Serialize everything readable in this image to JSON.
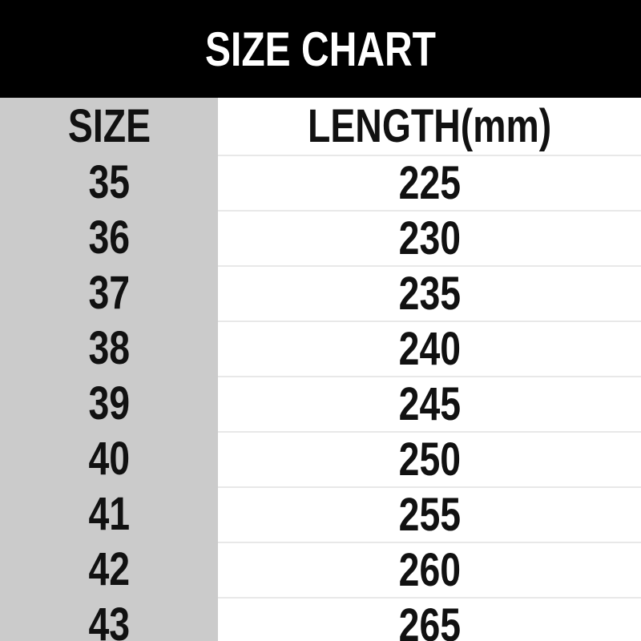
{
  "title": "SIZE CHART",
  "chart_data": {
    "type": "table",
    "title": "SIZE CHART",
    "columns": [
      "SIZE",
      "LENGTH(mm)"
    ],
    "rows": [
      [
        35,
        225
      ],
      [
        36,
        230
      ],
      [
        37,
        235
      ],
      [
        38,
        240
      ],
      [
        39,
        245
      ],
      [
        40,
        250
      ],
      [
        41,
        255
      ],
      [
        42,
        260
      ],
      [
        43,
        265
      ]
    ]
  },
  "colors": {
    "title_bg": "#000000",
    "title_text": "#ffffff",
    "size_col_bg": "#cbcbcb",
    "length_col_bg": "#ffffff",
    "divider": "#e8e8e8",
    "cell_text": "#111111"
  }
}
